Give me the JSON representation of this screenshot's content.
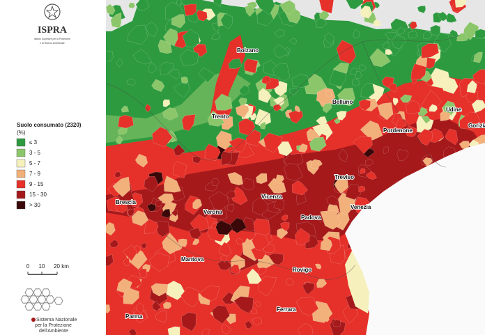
{
  "header": {
    "title": "ISPRA",
    "subtitle_lines": [
      "Istituto Superiore per la Protezione",
      "e la Ricerca Ambientale"
    ]
  },
  "legend": {
    "title": "Suolo consumato (2320)",
    "unit": "(%)",
    "items": [
      {
        "label": "≤ 3",
        "color": "#2e9a3f"
      },
      {
        "label": "3 - 5",
        "color": "#8cc66a"
      },
      {
        "label": "5 - 7",
        "color": "#f6f0bc"
      },
      {
        "label": "7 - 9",
        "color": "#f2b07a"
      },
      {
        "label": "9 - 15",
        "color": "#e5312a"
      },
      {
        "label": "15 - 30",
        "color": "#a5191b"
      },
      {
        "label": "> 30",
        "color": "#3a0808"
      }
    ]
  },
  "scale_bar": {
    "labels": [
      "0",
      "10",
      "20 km"
    ]
  },
  "cities": [
    "Bolzano",
    "Trento",
    "Belluno",
    "Udine",
    "Pordenone",
    "Gorizia",
    "Treviso",
    "Vicenza",
    "Venezia",
    "Padova",
    "Brescia",
    "Verona",
    "Mantova",
    "Rovigo",
    "Ferrara",
    "Parma"
  ],
  "footer_logo": {
    "lines": [
      "Sistema Nazionale",
      "per la Protezione",
      "dell'Ambiente"
    ]
  }
}
